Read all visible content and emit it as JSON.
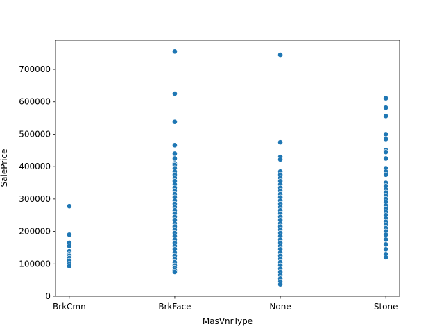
{
  "chart_data": {
    "type": "scatter",
    "title": "",
    "xlabel": "MasVnrType",
    "ylabel": "SalePrice",
    "categories": [
      "BrkCmn",
      "BrkFace",
      "None",
      "Stone"
    ],
    "ylim": [
      0,
      790000
    ],
    "yticks": [
      0,
      100000,
      200000,
      300000,
      400000,
      500000,
      600000,
      700000
    ],
    "ytick_labels": [
      "0",
      "100000",
      "200000",
      "300000",
      "400000",
      "500000",
      "600000",
      "700000"
    ],
    "grid": false,
    "legend": "none",
    "marker_color": "#1f77b4",
    "points": {
      "BrkCmn": [
        278000,
        190000,
        165000,
        155000,
        139000,
        130000,
        125000,
        118000,
        110000,
        100000,
        93000
      ],
      "BrkFace": [
        755000,
        625000,
        538000,
        466000,
        440000,
        425000,
        410000,
        405000,
        395000,
        385000,
        375000,
        365000,
        355000,
        345000,
        335000,
        325000,
        315000,
        305000,
        295000,
        285000,
        275000,
        265000,
        255000,
        245000,
        235000,
        225000,
        215000,
        205000,
        195000,
        185000,
        175000,
        165000,
        155000,
        145000,
        135000,
        125000,
        115000,
        105000,
        95000,
        88000,
        80000,
        75000
      ],
      "None": [
        745000,
        475000,
        430000,
        422000,
        385000,
        375000,
        365000,
        355000,
        345000,
        335000,
        325000,
        315000,
        305000,
        295000,
        285000,
        275000,
        265000,
        255000,
        245000,
        235000,
        225000,
        215000,
        205000,
        195000,
        185000,
        175000,
        165000,
        155000,
        145000,
        135000,
        125000,
        115000,
        105000,
        95000,
        85000,
        75000,
        65000,
        55000,
        45000,
        37000
      ],
      "Stone": [
        611000,
        582000,
        556000,
        500000,
        485000,
        451000,
        445000,
        425000,
        395000,
        385000,
        375000,
        350000,
        340000,
        330000,
        320000,
        310000,
        300000,
        290000,
        280000,
        270000,
        260000,
        250000,
        240000,
        230000,
        220000,
        210000,
        200000,
        190000,
        175000,
        160000,
        145000,
        130000,
        120000
      ]
    }
  }
}
